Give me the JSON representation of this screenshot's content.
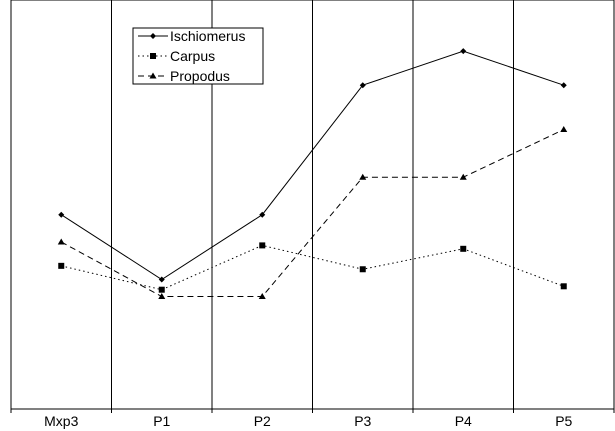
{
  "chart_data": {
    "type": "line",
    "categories": [
      "Mxp3",
      "P1",
      "P2",
      "P3",
      "P4",
      "P5"
    ],
    "ylim": [
      0,
      12
    ],
    "grid": "vertical separators between categories",
    "legend_position": "top-left",
    "series": [
      {
        "name": "Ischiomerus",
        "values": [
          5.7,
          3.8,
          5.7,
          9.5,
          10.5,
          9.5
        ],
        "line": "solid",
        "marker": "diamond",
        "color": "#000000"
      },
      {
        "name": "Carpus",
        "values": [
          4.2,
          3.5,
          4.8,
          4.1,
          4.7,
          3.6
        ],
        "line": "dotted",
        "marker": "square",
        "color": "#000000"
      },
      {
        "name": "Propodus",
        "values": [
          4.9,
          3.3,
          3.3,
          6.8,
          6.8,
          8.2
        ],
        "line": "dashed",
        "marker": "triangle",
        "color": "#000000"
      }
    ]
  }
}
